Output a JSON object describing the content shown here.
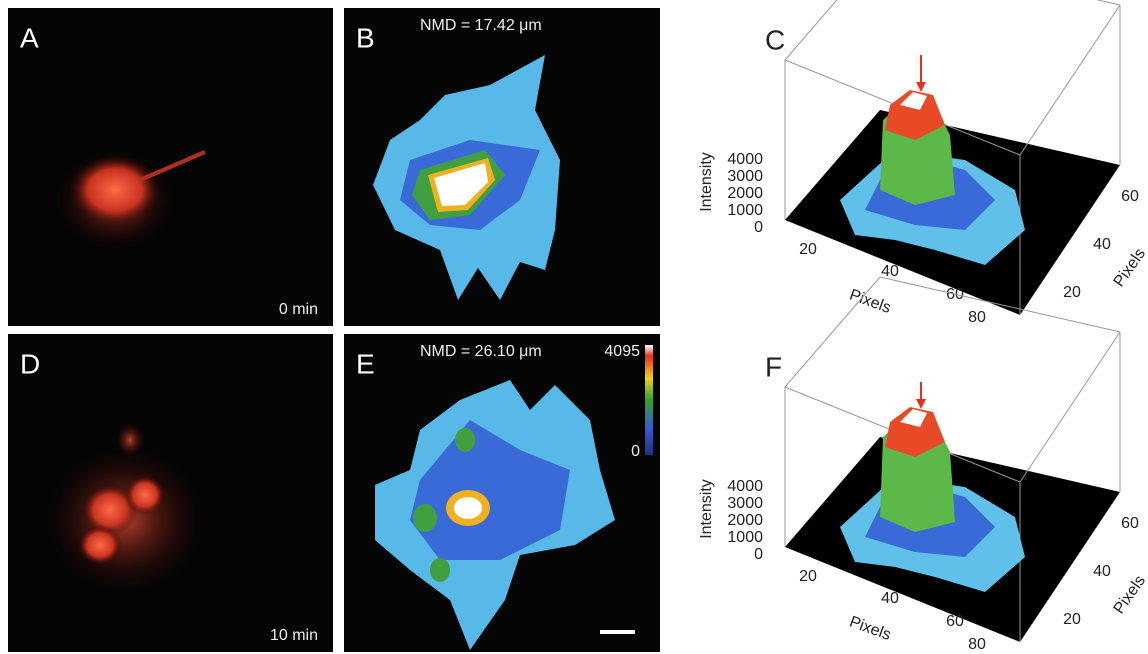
{
  "panels": [
    {
      "label": "A",
      "caption": "0 min"
    },
    {
      "label": "B",
      "annotation": "NMD = 17.42 μm"
    },
    {
      "label": "C",
      "z_axis": {
        "title": "Intensity",
        "ticks": [
          "4000",
          "3000",
          "2000",
          "1000",
          "0"
        ]
      },
      "x_axis": {
        "title": "Pixels",
        "ticks": [
          "20",
          "40",
          "60",
          "80"
        ]
      },
      "y_axis": {
        "title": "Pixels",
        "ticks": [
          "60",
          "40",
          "20"
        ]
      }
    },
    {
      "label": "D",
      "caption": "10 min"
    },
    {
      "label": "E",
      "annotation": "NMD = 26.10 μm",
      "colorbar": {
        "max": "4095",
        "min": "0"
      }
    },
    {
      "label": "F",
      "z_axis": {
        "title": "Intensity",
        "ticks": [
          "4000",
          "3000",
          "2000",
          "1000",
          "0"
        ]
      },
      "x_axis": {
        "title": "Pixels",
        "ticks": [
          "20",
          "40",
          "60",
          "80"
        ]
      },
      "y_axis": {
        "title": "Pixels",
        "ticks": [
          "60",
          "40",
          "20"
        ]
      }
    }
  ]
}
